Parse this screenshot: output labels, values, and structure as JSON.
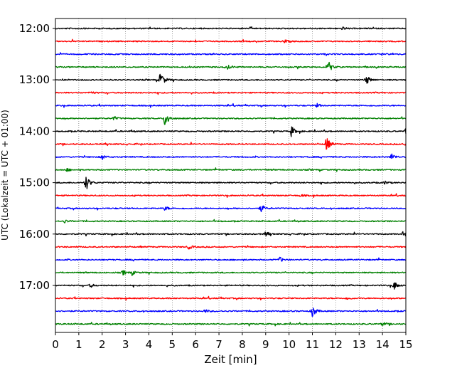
{
  "chart_data": {
    "type": "line",
    "subtype": "helicorder",
    "xlabel": "Zeit  [min]",
    "ylabel": "UTC (Lokalzeit = UTC + 01:00)",
    "xlim": [
      0,
      15
    ],
    "x_ticks": [
      0,
      1,
      2,
      3,
      4,
      5,
      6,
      7,
      8,
      9,
      10,
      11,
      12,
      13,
      14,
      15
    ],
    "y_tick_labels": [
      "12:00",
      "13:00",
      "14:00",
      "15:00",
      "16:00",
      "17:00"
    ],
    "trace_colors": [
      "#000000",
      "#ff0000",
      "#0000ff",
      "#008000"
    ],
    "trace_interval_minutes": 15,
    "grid": "vertical, dotted",
    "traces": [
      {
        "start": "12:00",
        "events": [
          {
            "t": 12.3,
            "a": 0.2
          }
        ]
      },
      {
        "start": "12:15",
        "events": [
          {
            "t": 9.8,
            "a": 0.3
          }
        ]
      },
      {
        "start": "12:30",
        "events": [
          {
            "t": 14.0,
            "a": 0.15
          }
        ]
      },
      {
        "start": "12:45",
        "events": [
          {
            "t": 11.7,
            "a": 0.9
          },
          {
            "t": 7.4,
            "a": 0.4
          }
        ]
      },
      {
        "start": "13:00",
        "events": [
          {
            "t": 4.5,
            "a": 1.5
          },
          {
            "t": 13.3,
            "a": 0.9
          }
        ]
      },
      {
        "start": "13:15",
        "events": [
          {
            "t": 1.5,
            "a": 0.2
          }
        ]
      },
      {
        "start": "13:30",
        "events": [
          {
            "t": 11.2,
            "a": 0.3
          }
        ]
      },
      {
        "start": "13:45",
        "events": [
          {
            "t": 4.7,
            "a": 1.6
          },
          {
            "t": 2.5,
            "a": 0.35
          }
        ]
      },
      {
        "start": "14:00",
        "events": [
          {
            "t": 10.1,
            "a": 0.9
          },
          {
            "t": 15.0,
            "a": 0.4
          }
        ]
      },
      {
        "start": "14:15",
        "events": [
          {
            "t": 11.6,
            "a": 1.3
          },
          {
            "t": 15.0,
            "a": 0.4
          }
        ]
      },
      {
        "start": "14:30",
        "events": [
          {
            "t": 14.4,
            "a": 0.6
          },
          {
            "t": 2.0,
            "a": 0.45
          }
        ]
      },
      {
        "start": "14:45",
        "events": [
          {
            "t": 0.5,
            "a": 0.25
          }
        ]
      },
      {
        "start": "15:00",
        "events": [
          {
            "t": 1.3,
            "a": 1.5
          },
          {
            "t": 14.1,
            "a": 0.3
          }
        ]
      },
      {
        "start": "15:15",
        "events": [
          {
            "t": 10.5,
            "a": 0.2
          }
        ]
      },
      {
        "start": "15:30",
        "events": [
          {
            "t": 8.8,
            "a": 0.7
          },
          {
            "t": 4.7,
            "a": 0.35
          }
        ]
      },
      {
        "start": "15:45",
        "events": [
          {
            "t": 0.4,
            "a": 0.25
          }
        ]
      },
      {
        "start": "16:00",
        "events": [
          {
            "t": 9.0,
            "a": 0.4
          },
          {
            "t": 14.9,
            "a": 0.5
          }
        ]
      },
      {
        "start": "16:15",
        "events": [
          {
            "t": 5.7,
            "a": 0.4
          }
        ]
      },
      {
        "start": "16:30",
        "events": [
          {
            "t": 9.6,
            "a": 0.45
          }
        ]
      },
      {
        "start": "16:45",
        "events": [
          {
            "t": 2.9,
            "a": 0.4
          },
          {
            "t": 3.3,
            "a": 0.3
          }
        ]
      },
      {
        "start": "17:00",
        "events": [
          {
            "t": 14.5,
            "a": 0.7
          },
          {
            "t": 1.5,
            "a": 0.3
          }
        ]
      },
      {
        "start": "17:15",
        "events": [
          {
            "t": 12.5,
            "a": 0.2
          }
        ]
      },
      {
        "start": "17:30",
        "events": [
          {
            "t": 11.0,
            "a": 1.1
          },
          {
            "t": 6.4,
            "a": 0.3
          }
        ]
      },
      {
        "start": "17:45",
        "events": [
          {
            "t": 14.0,
            "a": 0.35
          }
        ]
      }
    ]
  }
}
